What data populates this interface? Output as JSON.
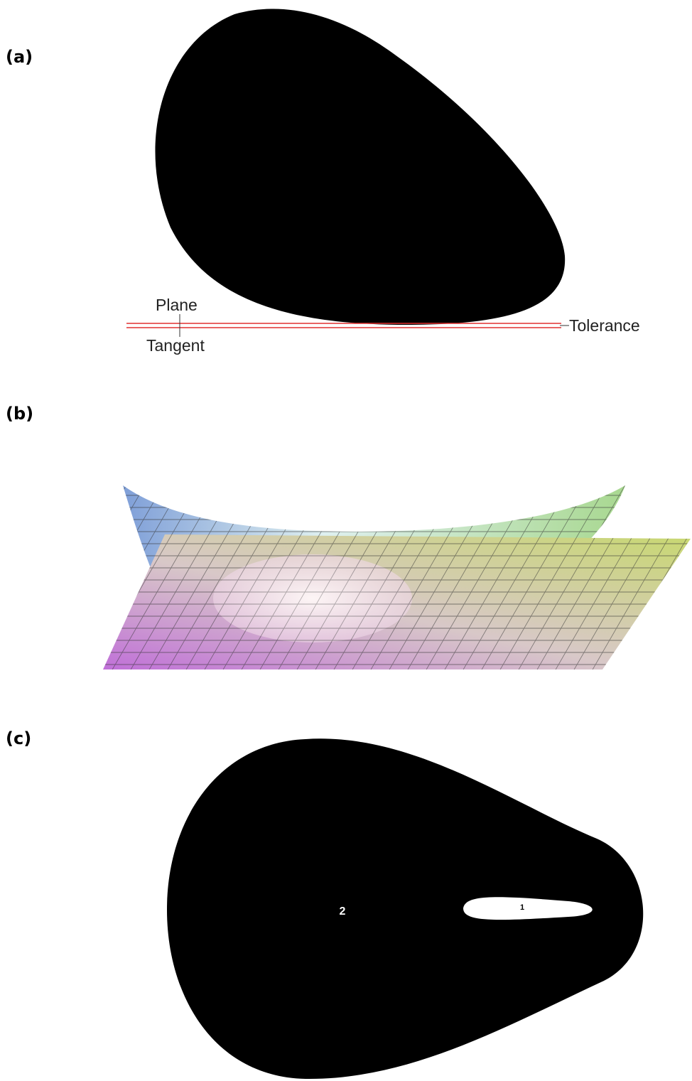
{
  "panels": [
    {
      "label": "(a)",
      "annotations": {
        "plane": "Plane",
        "tangent": "Tangent",
        "tolerance": "Tolerance"
      }
    },
    {
      "label": "(b)"
    },
    {
      "label": "(c)",
      "regions": [
        "2",
        "1"
      ]
    }
  ]
}
